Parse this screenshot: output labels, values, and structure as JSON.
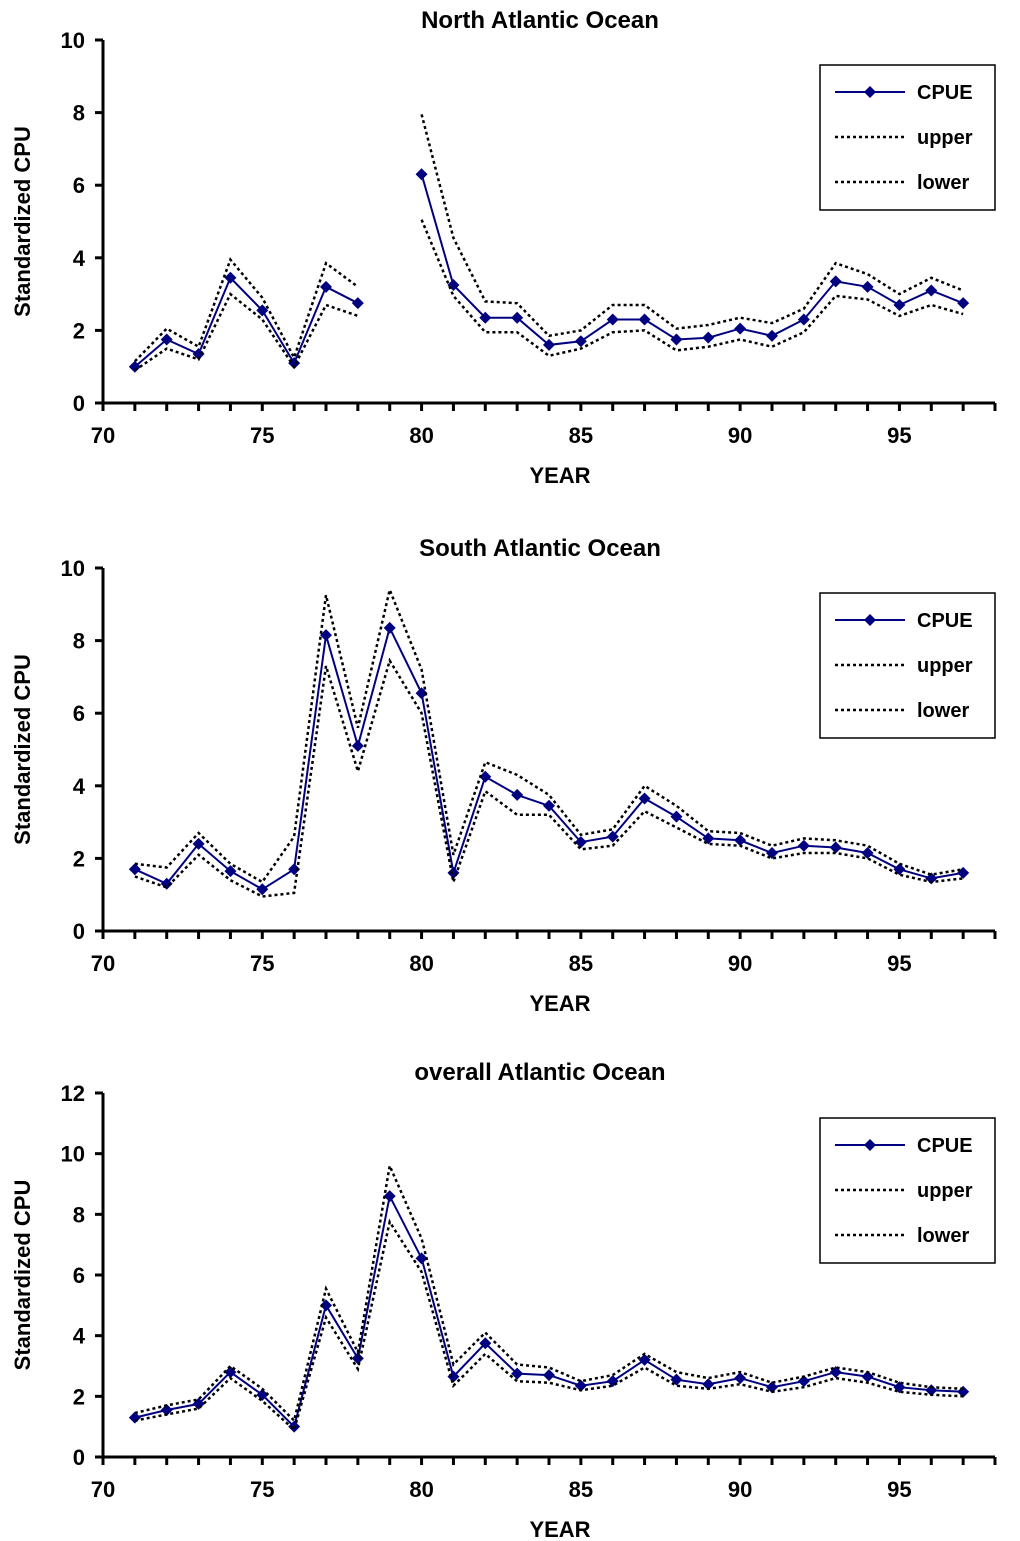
{
  "colors": {
    "cpue": "#000080",
    "bounds": "#000000"
  },
  "chart_data": [
    {
      "type": "line",
      "title": "North Atlantic Ocean",
      "xlabel": "YEAR",
      "ylabel": "Standardized CPU",
      "xlim": [
        70,
        98
      ],
      "ylim": [
        0,
        10
      ],
      "xticks": [
        70,
        75,
        80,
        85,
        90,
        95
      ],
      "yticks": [
        0,
        2,
        4,
        6,
        8,
        10
      ],
      "legend": "top-right",
      "series": [
        {
          "name": "CPUE",
          "style": "solid-diamond",
          "x": [
            71,
            72,
            73,
            74,
            75,
            76,
            77,
            78,
            80,
            81,
            82,
            83,
            84,
            85,
            86,
            87,
            88,
            89,
            90,
            91,
            92,
            93,
            94,
            95,
            96,
            97
          ],
          "y": [
            1.0,
            1.75,
            1.35,
            3.45,
            2.55,
            1.1,
            3.2,
            2.75,
            6.3,
            3.25,
            2.35,
            2.35,
            1.6,
            1.7,
            2.3,
            2.3,
            1.75,
            1.8,
            2.05,
            1.85,
            2.3,
            3.35,
            3.2,
            2.7,
            3.1,
            2.75
          ]
        },
        {
          "name": "upper",
          "style": "dotted",
          "x": [
            71,
            72,
            73,
            74,
            75,
            76,
            77,
            78,
            80,
            81,
            82,
            83,
            84,
            85,
            86,
            87,
            88,
            89,
            90,
            91,
            92,
            93,
            94,
            95,
            96,
            97
          ],
          "y": [
            1.15,
            2.05,
            1.55,
            3.95,
            2.9,
            1.25,
            3.85,
            3.2,
            7.95,
            4.55,
            2.8,
            2.75,
            1.85,
            2.0,
            2.7,
            2.7,
            2.05,
            2.15,
            2.35,
            2.2,
            2.6,
            3.85,
            3.55,
            3.0,
            3.45,
            3.1
          ]
        },
        {
          "name": "lower",
          "style": "dotted",
          "x": [
            71,
            72,
            73,
            74,
            75,
            76,
            77,
            78,
            80,
            81,
            82,
            83,
            84,
            85,
            86,
            87,
            88,
            89,
            90,
            91,
            92,
            93,
            94,
            95,
            96,
            97
          ],
          "y": [
            0.9,
            1.5,
            1.2,
            3.0,
            2.3,
            1.0,
            2.7,
            2.4,
            5.05,
            2.95,
            1.95,
            1.95,
            1.3,
            1.5,
            1.95,
            2.0,
            1.45,
            1.55,
            1.75,
            1.55,
            1.95,
            2.95,
            2.85,
            2.4,
            2.7,
            2.45
          ]
        }
      ]
    },
    {
      "type": "line",
      "title": "South Atlantic Ocean",
      "xlabel": "YEAR",
      "ylabel": "Standardized CPU",
      "xlim": [
        70,
        98
      ],
      "ylim": [
        0,
        10
      ],
      "xticks": [
        70,
        75,
        80,
        85,
        90,
        95
      ],
      "yticks": [
        0,
        2,
        4,
        6,
        8,
        10
      ],
      "legend": "top-right",
      "series": [
        {
          "name": "CPUE",
          "style": "solid-diamond",
          "x": [
            71,
            72,
            73,
            74,
            75,
            76,
            77,
            78,
            79,
            80,
            81,
            82,
            83,
            84,
            85,
            86,
            87,
            88,
            89,
            90,
            91,
            92,
            93,
            94,
            95,
            96,
            97
          ],
          "y": [
            1.7,
            1.3,
            2.4,
            1.65,
            1.15,
            1.7,
            8.15,
            5.1,
            8.35,
            6.55,
            1.6,
            4.25,
            3.75,
            3.45,
            2.45,
            2.6,
            3.65,
            3.15,
            2.55,
            2.5,
            2.15,
            2.35,
            2.3,
            2.15,
            1.7,
            1.45,
            1.6
          ]
        },
        {
          "name": "upper",
          "style": "dotted",
          "x": [
            71,
            72,
            73,
            74,
            75,
            76,
            77,
            78,
            79,
            80,
            81,
            82,
            83,
            84,
            85,
            86,
            87,
            88,
            89,
            90,
            91,
            92,
            93,
            94,
            95,
            96,
            97
          ],
          "y": [
            1.85,
            1.75,
            2.7,
            1.85,
            1.35,
            2.6,
            9.25,
            5.6,
            9.4,
            7.2,
            2.1,
            4.65,
            4.3,
            3.75,
            2.65,
            2.8,
            4.0,
            3.45,
            2.75,
            2.7,
            2.35,
            2.55,
            2.5,
            2.35,
            1.85,
            1.55,
            1.7
          ]
        },
        {
          "name": "lower",
          "style": "dotted",
          "x": [
            71,
            72,
            73,
            74,
            75,
            76,
            77,
            78,
            79,
            80,
            81,
            82,
            83,
            84,
            85,
            86,
            87,
            88,
            89,
            90,
            91,
            92,
            93,
            94,
            95,
            96,
            97
          ],
          "y": [
            1.5,
            1.2,
            2.1,
            1.4,
            0.95,
            1.05,
            7.3,
            4.4,
            7.45,
            6.0,
            1.35,
            3.85,
            3.2,
            3.2,
            2.25,
            2.35,
            3.3,
            2.85,
            2.4,
            2.35,
            2.0,
            2.15,
            2.15,
            2.0,
            1.55,
            1.35,
            1.45
          ]
        }
      ]
    },
    {
      "type": "line",
      "title": "overall Atlantic Ocean",
      "xlabel": "YEAR",
      "ylabel": "Standardized CPU",
      "xlim": [
        70,
        98
      ],
      "ylim": [
        0,
        12
      ],
      "xticks": [
        70,
        75,
        80,
        85,
        90,
        95
      ],
      "yticks": [
        0,
        2,
        4,
        6,
        8,
        10,
        12
      ],
      "legend": "top-right",
      "series": [
        {
          "name": "CPUE",
          "style": "solid-diamond",
          "x": [
            71,
            72,
            73,
            74,
            75,
            76,
            77,
            78,
            79,
            80,
            81,
            82,
            83,
            84,
            85,
            86,
            87,
            88,
            89,
            90,
            91,
            92,
            93,
            94,
            95,
            96,
            97
          ],
          "y": [
            1.3,
            1.55,
            1.75,
            2.8,
            2.05,
            1.0,
            5.0,
            3.25,
            8.6,
            6.55,
            2.65,
            3.75,
            2.75,
            2.7,
            2.35,
            2.5,
            3.2,
            2.55,
            2.4,
            2.6,
            2.3,
            2.5,
            2.8,
            2.65,
            2.3,
            2.2,
            2.15
          ]
        },
        {
          "name": "upper",
          "style": "dotted",
          "x": [
            71,
            72,
            73,
            74,
            75,
            76,
            77,
            78,
            79,
            80,
            81,
            82,
            83,
            84,
            85,
            86,
            87,
            88,
            89,
            90,
            91,
            92,
            93,
            94,
            95,
            96,
            97
          ],
          "y": [
            1.45,
            1.7,
            1.9,
            3.0,
            2.25,
            1.2,
            5.55,
            3.45,
            9.6,
            7.2,
            3.05,
            4.1,
            3.05,
            2.95,
            2.5,
            2.7,
            3.4,
            2.8,
            2.6,
            2.8,
            2.45,
            2.65,
            2.95,
            2.8,
            2.45,
            2.3,
            2.25
          ]
        },
        {
          "name": "lower",
          "style": "dotted",
          "x": [
            71,
            72,
            73,
            74,
            75,
            76,
            77,
            78,
            79,
            80,
            81,
            82,
            83,
            84,
            85,
            86,
            87,
            88,
            89,
            90,
            91,
            92,
            93,
            94,
            95,
            96,
            97
          ],
          "y": [
            1.2,
            1.4,
            1.6,
            2.6,
            1.85,
            0.9,
            4.6,
            2.9,
            7.75,
            6.1,
            2.35,
            3.4,
            2.5,
            2.45,
            2.2,
            2.35,
            2.95,
            2.35,
            2.25,
            2.4,
            2.15,
            2.3,
            2.6,
            2.45,
            2.15,
            2.05,
            2.0
          ]
        }
      ]
    }
  ]
}
